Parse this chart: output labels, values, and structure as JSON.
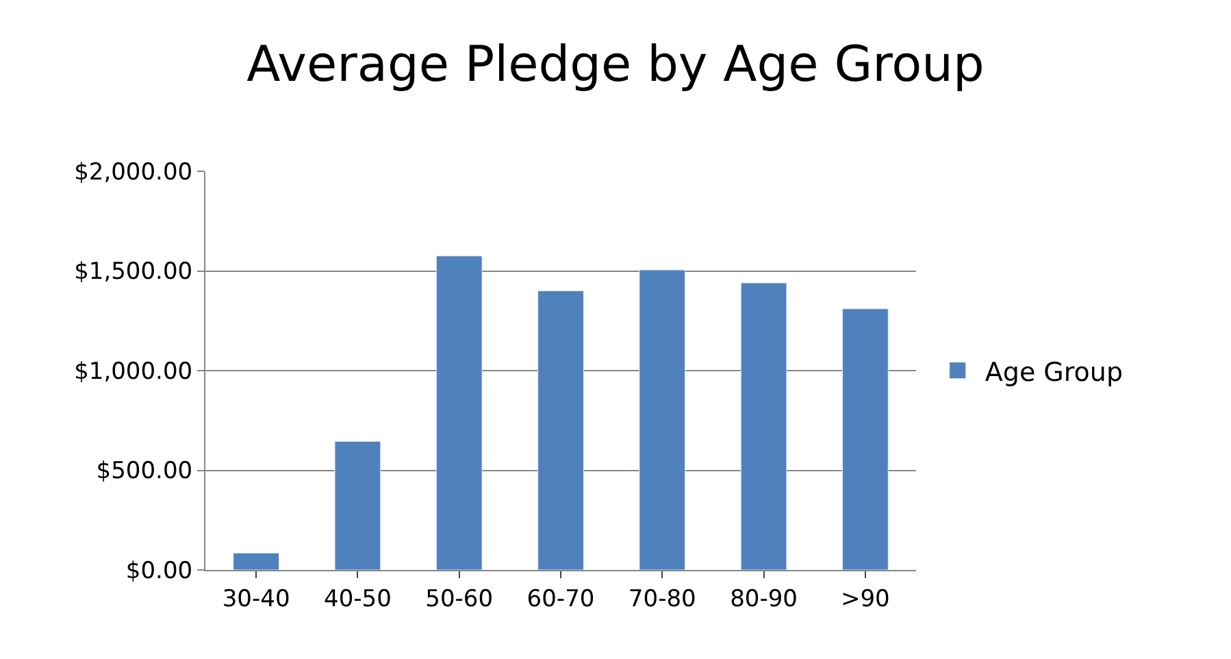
{
  "chart_data": {
    "type": "bar",
    "title": "Average Pledge by Age Group",
    "categories": [
      "30-40",
      "40-50",
      "50-60",
      "60-70",
      "70-80",
      "80-90",
      ">90"
    ],
    "series": [
      {
        "name": "Age Group",
        "color": "#4f81bd",
        "values": [
          85,
          645,
          1575,
          1400,
          1505,
          1440,
          1310
        ]
      }
    ],
    "ylim": [
      0,
      2000
    ],
    "yticks": [
      {
        "value": 0,
        "label": "$0.00"
      },
      {
        "value": 500,
        "label": "$500.00"
      },
      {
        "value": 1000,
        "label": "$1,000.00"
      },
      {
        "value": 1500,
        "label": "$1,500.00"
      },
      {
        "value": 2000,
        "label": "$2,000.00"
      }
    ],
    "grid": "y",
    "legend": "right"
  }
}
